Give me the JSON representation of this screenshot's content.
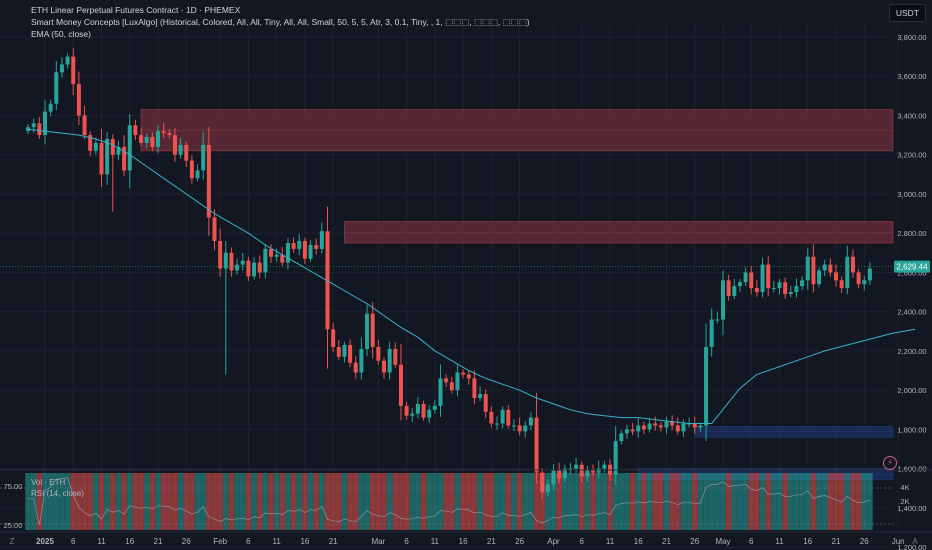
{
  "legend": {
    "title": "ETH Linear Perpetual Futures Contract · 1D · PHEMEX",
    "indicator": "Smart Money Concepts [LuxAlgo] (Historical, Colored, All, All, Tiny, All, All, Small, 50, 5, 5, Atr, 3, 0.1, Tiny, , 1, ⬚⬚⬚, ⬚⬚⬚, ⬚⬚⬚)",
    "ema": "EMA (50, close)"
  },
  "currency_label": "USDT",
  "bolt_icon": "lightning-icon",
  "last_price_label": "2,629.44",
  "sub_legend": {
    "vol": "Vol · ETH",
    "rsi": "RSI (14, close)"
  },
  "rsi_ticks": [
    "75.00",
    "25.00"
  ],
  "vol_ticks": [
    "4K",
    "2K"
  ],
  "corner_left": "Z",
  "corner_right": "A",
  "colors": {
    "bg": "#131722",
    "up": "#26a69a",
    "down": "#ef5350",
    "ema": "#35b3c9",
    "supply": "#8c3743",
    "demand": "#1e3a78",
    "grid": "#1c2130"
  },
  "chart_data": {
    "type": "candlestick",
    "y_ticks": [
      "3,800.00",
      "3,600.00",
      "3,400.00",
      "3,200.00",
      "3,000.00",
      "2,800.00",
      "2,600.00",
      "2,400.00",
      "2,200.00",
      "2,000.00",
      "1,800.00",
      "1,600.00",
      "1,400.00",
      "1,200.00"
    ],
    "y_tick_values": [
      3800,
      3600,
      3400,
      3200,
      3000,
      2800,
      2600,
      2400,
      2200,
      2000,
      1800,
      1600,
      1400,
      1200
    ],
    "ylim": [
      1180,
      3950
    ],
    "x_labels": [
      {
        "text": "2025",
        "day": 0,
        "bold": true
      },
      {
        "text": "6",
        "day": 5
      },
      {
        "text": "11",
        "day": 10
      },
      {
        "text": "16",
        "day": 15
      },
      {
        "text": "21",
        "day": 20
      },
      {
        "text": "26",
        "day": 25
      },
      {
        "text": "Feb",
        "day": 31
      },
      {
        "text": "6",
        "day": 36
      },
      {
        "text": "11",
        "day": 41
      },
      {
        "text": "16",
        "day": 46
      },
      {
        "text": "21",
        "day": 51
      },
      {
        "text": "Mar",
        "day": 59
      },
      {
        "text": "6",
        "day": 64
      },
      {
        "text": "11",
        "day": 69
      },
      {
        "text": "16",
        "day": 74
      },
      {
        "text": "21",
        "day": 79
      },
      {
        "text": "26",
        "day": 84
      },
      {
        "text": "Apr",
        "day": 90
      },
      {
        "text": "6",
        "day": 95
      },
      {
        "text": "11",
        "day": 100
      },
      {
        "text": "16",
        "day": 105
      },
      {
        "text": "21",
        "day": 110
      },
      {
        "text": "26",
        "day": 115
      },
      {
        "text": "May",
        "day": 120
      },
      {
        "text": "6",
        "day": 125
      },
      {
        "text": "11",
        "day": 130
      },
      {
        "text": "16",
        "day": 135
      },
      {
        "text": "21",
        "day": 140
      },
      {
        "text": "26",
        "day": 145
      },
      {
        "text": "Jun",
        "day": 151
      }
    ],
    "start_day": -3,
    "closes": [
      3340,
      3360,
      3300,
      3420,
      3460,
      3620,
      3660,
      3700,
      3560,
      3400,
      3300,
      3220,
      3260,
      3100,
      3280,
      3200,
      3240,
      3120,
      3350,
      3300,
      3260,
      3290,
      3240,
      3320,
      3310,
      3300,
      3200,
      3250,
      3170,
      3080,
      3120,
      3250,
      2880,
      2760,
      2620,
      2700,
      2610,
      2640,
      2660,
      2580,
      2650,
      2600,
      2720,
      2680,
      2690,
      2650,
      2750,
      2720,
      2760,
      2670,
      2740,
      2720,
      2810,
      2310,
      2220,
      2170,
      2230,
      2140,
      2090,
      2210,
      2390,
      2220,
      2150,
      2090,
      2210,
      2130,
      1920,
      1870,
      1880,
      1930,
      1860,
      1900,
      1920,
      2060,
      2040,
      2000,
      2090,
      2080,
      2060,
      1960,
      1980,
      1890,
      1830,
      1830,
      1900,
      1820,
      1820,
      1790,
      1820,
      1860,
      1580,
      1480,
      1520,
      1590,
      1550,
      1600,
      1600,
      1620,
      1560,
      1590,
      1580,
      1600,
      1620,
      1570,
      1740,
      1780,
      1800,
      1790,
      1820,
      1800,
      1830,
      1820,
      1810,
      1840,
      1820,
      1790,
      1830,
      1830,
      1810,
      1820,
      2220,
      2360,
      2360,
      2560,
      2480,
      2530,
      2550,
      2600,
      2520,
      2500,
      2640,
      2520,
      2520,
      2550,
      2490,
      2500,
      2530,
      2560,
      2680,
      2540,
      2610,
      2640,
      2600,
      2560,
      2520,
      2680,
      2600,
      2540,
      2560,
      2620
    ],
    "ema_50": [
      3330,
      3320,
      3310,
      3300,
      3280,
      3250,
      3200,
      3140,
      3080,
      3020,
      2960,
      2900,
      2850,
      2800,
      2740,
      2690,
      2640,
      2590,
      2540,
      2490,
      2440,
      2380,
      2320,
      2270,
      2200,
      2150,
      2100,
      2060,
      2030,
      2000,
      1960,
      1930,
      1900,
      1880,
      1870,
      1860,
      1860,
      1850,
      1840,
      1830,
      1830,
      2010,
      2080,
      2120,
      2160,
      2200,
      2230,
      2260,
      2290,
      2310
    ],
    "ema_days": [
      -3,
      0,
      3,
      6,
      9,
      12,
      15,
      18,
      21,
      24,
      27,
      30,
      33,
      36,
      39,
      42,
      45,
      48,
      51,
      54,
      57,
      60,
      63,
      66,
      69,
      72,
      75,
      78,
      81,
      84,
      87,
      90,
      93,
      96,
      99,
      102,
      105,
      108,
      111,
      114,
      118,
      123,
      126,
      130,
      134,
      138,
      142,
      146,
      150,
      154
    ],
    "order_blocks": [
      {
        "kind": "supply",
        "x0": 17,
        "x1": 155,
        "y0": 3220,
        "y1": 3430
      },
      {
        "kind": "supply",
        "x0": 53,
        "x1": 155,
        "y0": 2750,
        "y1": 2860
      },
      {
        "kind": "demand",
        "x0": 115,
        "x1": 155,
        "y0": 1760,
        "y1": 1815
      },
      {
        "kind": "demand",
        "x0": 105,
        "x1": 155,
        "y0": 1545,
        "y1": 1600
      }
    ]
  }
}
